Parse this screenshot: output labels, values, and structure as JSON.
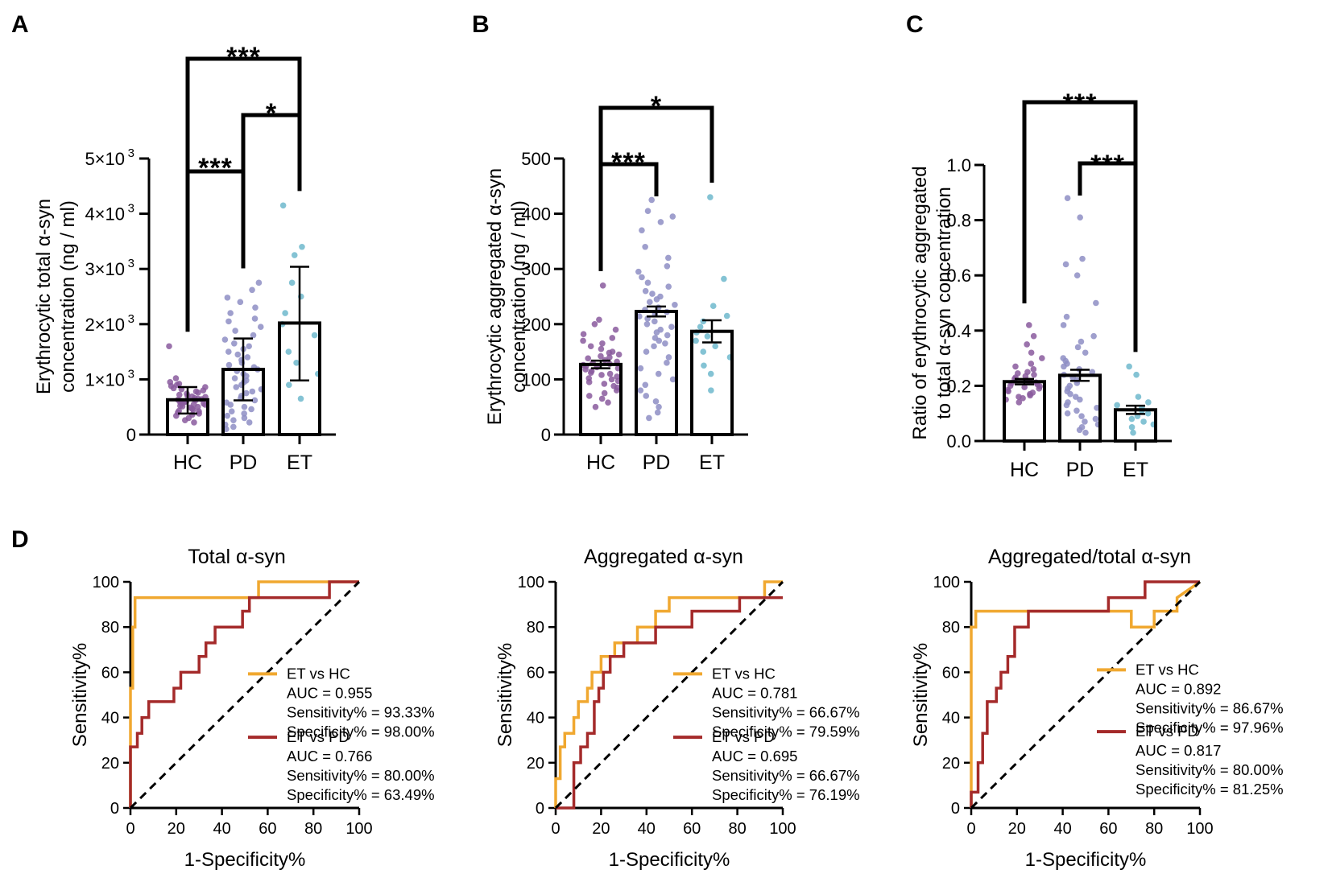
{
  "panels": {
    "A": {
      "letter": "A",
      "ylabel_line1": "Erythrocytic total α-syn",
      "ylabel_line2": "concentration (ng / ml)",
      "ytick_labels": [
        "0",
        "1×10",
        "2×10",
        "3×10",
        "4×10",
        "5×10"
      ],
      "ytick_exponent": "3",
      "brackets": [
        {
          "from": "HC",
          "to": "ET",
          "stars": "***"
        },
        {
          "from": "PD",
          "to": "ET",
          "stars": "*"
        },
        {
          "from": "HC",
          "to": "PD",
          "stars": "***"
        }
      ]
    },
    "B": {
      "letter": "B",
      "ylabel_line1": "Erythrocytic aggregated α-syn",
      "ylabel_line2": "concentration (ng / ml)",
      "ytick_labels": [
        "0",
        "100",
        "200",
        "300",
        "400",
        "500"
      ],
      "brackets": [
        {
          "from": "HC",
          "to": "ET",
          "stars": "*"
        },
        {
          "from": "HC",
          "to": "PD",
          "stars": "***"
        }
      ]
    },
    "C": {
      "letter": "C",
      "ylabel_line1": "Ratio of erythrocytic aggregated",
      "ylabel_line2": "to total α-syn concentration",
      "ytick_labels": [
        "0.0",
        "0.2",
        "0.4",
        "0.6",
        "0.8",
        "1.0"
      ],
      "brackets": [
        {
          "from": "HC",
          "to": "ET",
          "stars": "***"
        },
        {
          "from": "PD",
          "to": "ET",
          "stars": "***"
        }
      ]
    },
    "D": {
      "letter": "D",
      "roc_titles": [
        "Total α-syn",
        "Aggregated α-syn",
        "Aggregated/total α-syn"
      ],
      "xlabel": "1-Specificity%",
      "ylabel": "Sensitivity%",
      "tick_labels": [
        "0",
        "20",
        "40",
        "60",
        "80",
        "100"
      ],
      "legends": [
        {
          "et_hc": {
            "name": "ET vs HC",
            "auc": "AUC = 0.955",
            "sens": "Sensitivity% = 93.33%",
            "spec": "Specificity% = 98.00%"
          },
          "et_pd": {
            "name": "ET vs PD",
            "auc": "AUC = 0.766",
            "sens": "Sensitivity% = 80.00%",
            "spec": "Specificity% = 63.49%"
          }
        },
        {
          "et_hc": {
            "name": "ET vs HC",
            "auc": "AUC = 0.781",
            "sens": "Sensitivity% = 66.67%",
            "spec": "Specificity% = 79.59%"
          },
          "et_pd": {
            "name": "ET vs PD",
            "auc": "AUC = 0.695",
            "sens": "Sensitivity% = 66.67%",
            "spec": "Specificity% = 76.19%"
          }
        },
        {
          "et_hc": {
            "name": "ET vs HC",
            "auc": "AUC = 0.892",
            "sens": "Sensitivity% = 86.67%",
            "spec": "Specificity% = 97.96%"
          },
          "et_pd": {
            "name": "ET vs PD",
            "auc": "AUC = 0.817",
            "sens": "Sensitivity% = 80.00%",
            "spec": "Specificity% = 81.25%"
          }
        }
      ]
    }
  },
  "colors": {
    "hc": "#8a5a9e",
    "pd": "#8e8ec4",
    "et": "#6fb8cc",
    "et_vs_hc": "#f0a830",
    "et_vs_pd": "#a42a2a",
    "axis": "#000000"
  },
  "chart_data": [
    {
      "panel": "A",
      "type": "bar",
      "categories": [
        "HC",
        "PD",
        "ET"
      ],
      "values": [
        630,
        1180,
        2020
      ],
      "error": [
        [
          380,
          860
        ],
        [
          620,
          1740
        ],
        [
          980,
          3040
        ]
      ],
      "points": [
        [
          1600,
          1020,
          950,
          920,
          900,
          880,
          860,
          840,
          820,
          800,
          780,
          760,
          740,
          720,
          700,
          690,
          680,
          660,
          650,
          640,
          630,
          620,
          610,
          600,
          590,
          580,
          570,
          560,
          550,
          540,
          520,
          510,
          500,
          490,
          470,
          450,
          430,
          420,
          400,
          380,
          360,
          340,
          300,
          260,
          220
        ],
        [
          2750,
          2620,
          2480,
          2400,
          2300,
          2200,
          2100,
          2050,
          1950,
          1880,
          1800,
          1720,
          1650,
          1600,
          1550,
          1500,
          1450,
          1400,
          1350,
          1300,
          1260,
          1220,
          1180,
          1150,
          1100,
          1060,
          1020,
          980,
          950,
          900,
          860,
          820,
          780,
          750,
          700,
          660,
          620,
          580,
          540,
          500,
          460,
          420,
          380,
          340,
          300,
          260,
          220,
          180,
          140,
          100
        ],
        [
          4150,
          3400,
          3250,
          2750,
          2500,
          2200,
          2000,
          1800,
          1500,
          1300,
          1100,
          900,
          650
        ]
      ],
      "ylabel": "Erythrocytic total α-syn concentration (ng / ml)",
      "ylim": [
        0,
        5000
      ],
      "significance": [
        [
          "HC",
          "ET",
          "***"
        ],
        [
          "PD",
          "ET",
          "*"
        ],
        [
          "HC",
          "PD",
          "***"
        ]
      ]
    },
    {
      "panel": "B",
      "type": "bar",
      "categories": [
        "HC",
        "PD",
        "ET"
      ],
      "values": [
        127,
        223,
        187
      ],
      "error": [
        [
          120,
          134
        ],
        [
          214,
          232
        ],
        [
          167,
          207
        ]
      ],
      "points": [
        [
          270,
          208,
          200,
          190,
          182,
          175,
          170,
          165,
          160,
          155,
          150,
          148,
          145,
          142,
          140,
          138,
          135,
          132,
          130,
          128,
          126,
          124,
          122,
          120,
          118,
          115,
          112,
          110,
          108,
          105,
          102,
          100,
          97,
          95,
          92,
          88,
          85,
          80,
          75,
          70,
          65,
          58,
          50
        ],
        [
          425,
          405,
          395,
          385,
          370,
          340,
          320,
          305,
          295,
          285,
          275,
          268,
          260,
          255,
          250,
          245,
          240,
          235,
          230,
          226,
          222,
          218,
          214,
          210,
          205,
          200,
          195,
          190,
          185,
          180,
          175,
          170,
          165,
          160,
          150,
          140,
          130,
          120,
          110,
          100,
          90,
          80,
          70,
          60,
          50,
          40,
          30
        ],
        [
          430,
          282,
          233,
          215,
          205,
          195,
          185,
          178,
          170,
          160,
          150,
          140,
          125,
          110,
          80
        ]
      ],
      "ylabel": "Erythrocytic aggregated α-syn concentration (ng / ml)",
      "ylim": [
        0,
        500
      ],
      "significance": [
        [
          "HC",
          "ET",
          "*"
        ],
        [
          "HC",
          "PD",
          "***"
        ]
      ]
    },
    {
      "panel": "C",
      "type": "bar",
      "categories": [
        "HC",
        "PD",
        "ET"
      ],
      "values": [
        0.215,
        0.238,
        0.113
      ],
      "error": [
        [
          0.205,
          0.225
        ],
        [
          0.218,
          0.258
        ],
        [
          0.098,
          0.128
        ]
      ],
      "points": [
        [
          0.42,
          0.38,
          0.35,
          0.32,
          0.3,
          0.28,
          0.27,
          0.26,
          0.25,
          0.245,
          0.24,
          0.235,
          0.23,
          0.225,
          0.22,
          0.218,
          0.215,
          0.212,
          0.21,
          0.205,
          0.2,
          0.198,
          0.195,
          0.19,
          0.185,
          0.18,
          0.175,
          0.17,
          0.165,
          0.16,
          0.155,
          0.15,
          0.14
        ],
        [
          0.88,
          0.81,
          0.66,
          0.64,
          0.6,
          0.5,
          0.45,
          0.42,
          0.38,
          0.36,
          0.34,
          0.32,
          0.3,
          0.29,
          0.28,
          0.27,
          0.26,
          0.25,
          0.24,
          0.23,
          0.22,
          0.21,
          0.2,
          0.19,
          0.18,
          0.17,
          0.16,
          0.15,
          0.14,
          0.13,
          0.12,
          0.11,
          0.1,
          0.09,
          0.08,
          0.07,
          0.06,
          0.05,
          0.04,
          0.03
        ],
        [
          0.27,
          0.24,
          0.16,
          0.14,
          0.13,
          0.12,
          0.11,
          0.1,
          0.09,
          0.08,
          0.07,
          0.06,
          0.05,
          0.03
        ]
      ],
      "ylabel": "Ratio of erythrocytic aggregated to total α-syn concentration",
      "ylim": [
        0,
        1.0
      ],
      "significance": [
        [
          "HC",
          "ET",
          "***"
        ],
        [
          "PD",
          "ET",
          "***"
        ]
      ]
    },
    {
      "panel": "D1",
      "type": "line",
      "title": "Total α-syn",
      "xlabel": "1-Specificity%",
      "ylabel": "Sensitivity%",
      "xlim": [
        0,
        100
      ],
      "ylim": [
        0,
        100
      ],
      "series": [
        {
          "name": "ET vs HC",
          "x": [
            0,
            0,
            0,
            1,
            1,
            2,
            2,
            56,
            56,
            100
          ],
          "y": [
            0,
            7,
            53,
            53,
            80,
            80,
            93,
            93,
            100,
            100
          ]
        },
        {
          "name": "ET vs PD",
          "x": [
            0,
            0,
            3,
            3,
            5,
            5,
            8,
            8,
            19,
            19,
            22,
            22,
            30,
            30,
            33,
            33,
            37,
            37,
            49,
            49,
            52,
            52,
            87,
            87,
            100
          ],
          "y": [
            0,
            27,
            27,
            33,
            33,
            40,
            40,
            47,
            47,
            53,
            53,
            60,
            60,
            67,
            67,
            73,
            73,
            80,
            80,
            87,
            87,
            93,
            93,
            100,
            100
          ]
        },
        {
          "name": "reference",
          "x": [
            0,
            100
          ],
          "y": [
            0,
            100
          ]
        }
      ]
    },
    {
      "panel": "D2",
      "type": "line",
      "title": "Aggregated α-syn",
      "xlabel": "1-Specificity%",
      "ylabel": "Sensitivity%",
      "xlim": [
        0,
        100
      ],
      "ylim": [
        0,
        100
      ],
      "series": [
        {
          "name": "ET vs HC",
          "x": [
            0,
            0,
            2,
            2,
            4,
            4,
            8,
            8,
            10,
            10,
            14,
            14,
            16,
            16,
            20,
            20,
            26,
            26,
            36,
            36,
            44,
            44,
            50,
            50,
            92,
            92,
            100
          ],
          "y": [
            0,
            13,
            13,
            27,
            27,
            33,
            33,
            40,
            40,
            47,
            47,
            53,
            53,
            60,
            60,
            67,
            67,
            73,
            73,
            80,
            80,
            87,
            87,
            93,
            93,
            100,
            100
          ]
        },
        {
          "name": "ET vs PD",
          "x": [
            0,
            8,
            8,
            11,
            11,
            14,
            14,
            17,
            17,
            19,
            19,
            21,
            21,
            24,
            24,
            30,
            30,
            44,
            44,
            60,
            60,
            81,
            81,
            100
          ],
          "y": [
            0,
            0,
            20,
            20,
            27,
            27,
            33,
            33,
            47,
            47,
            53,
            53,
            60,
            60,
            67,
            67,
            73,
            73,
            80,
            80,
            87,
            87,
            93,
            93
          ]
        },
        {
          "name": "reference",
          "x": [
            0,
            100
          ],
          "y": [
            0,
            100
          ]
        }
      ]
    },
    {
      "panel": "D3",
      "type": "line",
      "title": "Aggregated/total α-syn",
      "xlabel": "1-Specificity%",
      "ylabel": "Sensitivity%",
      "xlim": [
        0,
        100
      ],
      "ylim": [
        0,
        100
      ],
      "series": [
        {
          "name": "ET vs HC",
          "x": [
            0,
            0,
            2,
            2,
            70,
            70,
            80,
            80,
            90,
            90,
            100
          ],
          "y": [
            0,
            80,
            80,
            87,
            87,
            80,
            80,
            87,
            87,
            93,
            100
          ]
        },
        {
          "name": "ET vs PD",
          "x": [
            0,
            0,
            3,
            3,
            5,
            5,
            7,
            7,
            11,
            11,
            13,
            13,
            16,
            16,
            19,
            19,
            25,
            25,
            60,
            60,
            76,
            76,
            100
          ],
          "y": [
            0,
            7,
            7,
            20,
            20,
            33,
            33,
            47,
            47,
            53,
            53,
            60,
            60,
            67,
            67,
            80,
            80,
            87,
            87,
            93,
            93,
            100,
            100
          ]
        },
        {
          "name": "reference",
          "x": [
            0,
            100
          ],
          "y": [
            0,
            100
          ]
        }
      ]
    }
  ]
}
